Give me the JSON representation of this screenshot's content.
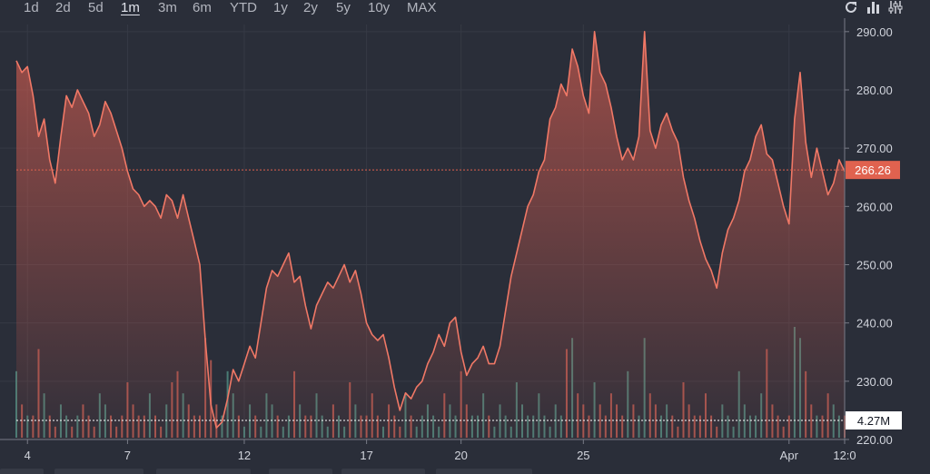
{
  "toolbar": {
    "ranges": [
      "1d",
      "2d",
      "5d",
      "1m",
      "3m",
      "6m",
      "YTD",
      "1y",
      "2y",
      "5y",
      "10y",
      "MAX"
    ],
    "active_range": "1m",
    "icons": [
      "refresh-icon",
      "bar-chart-icon",
      "settings-sliders-icon"
    ]
  },
  "colors": {
    "background": "#2a2e39",
    "grid": "#363a45",
    "price_line": "#f07866",
    "area_top": "#c0574d",
    "volume_up": "#4f8a80",
    "volume_down": "#b85a52",
    "price_label_bg": "#e0624f",
    "volume_label_bg": "#ffffff"
  },
  "chart_data": {
    "type": "area",
    "y_axis": {
      "range": [
        220,
        292
      ],
      "ticks": [
        "290.00",
        "280.00",
        "270.00",
        "260.00",
        "250.00",
        "240.00",
        "230.00",
        "220.00"
      ]
    },
    "x_axis": {
      "ticks": [
        "4",
        "7",
        "12",
        "17",
        "20",
        "25",
        "Apr",
        "12:0"
      ]
    },
    "last_price_label": "266.26",
    "last_price": 266.26,
    "volume_label": "4.27M",
    "volume_level": 4.27,
    "grid": true,
    "series": [
      {
        "values": [
          285,
          283,
          284,
          279,
          272,
          275,
          268,
          264,
          272,
          279,
          277,
          280,
          278,
          276,
          272,
          274,
          278,
          276,
          273,
          270,
          266,
          263,
          262,
          260,
          261,
          260,
          258,
          262,
          261,
          258,
          262,
          258,
          254,
          250,
          237,
          226,
          222,
          223,
          227,
          232,
          230,
          233,
          236,
          234,
          240,
          246,
          249,
          248,
          250,
          252,
          247,
          248,
          243,
          239,
          243,
          245,
          247,
          246,
          248,
          250,
          247,
          249,
          245,
          240,
          238,
          237,
          238,
          234,
          229,
          225,
          228,
          227,
          229,
          230,
          233,
          235,
          238,
          236,
          240,
          241,
          235,
          231,
          233,
          234,
          236,
          233,
          233,
          236,
          242,
          248,
          252,
          256,
          260,
          262,
          266,
          268,
          275,
          277,
          281,
          279,
          287,
          284,
          279,
          276,
          290,
          283,
          281,
          277,
          272,
          268,
          270,
          268,
          272,
          290,
          273,
          270,
          274,
          276,
          273,
          271,
          265,
          261,
          258,
          254,
          251,
          249,
          246,
          252,
          256,
          258,
          261,
          266,
          268,
          272,
          274,
          269,
          268,
          264,
          260,
          257,
          275,
          283,
          271,
          265,
          270,
          266,
          262,
          264,
          268,
          266
        ]
      }
    ],
    "volume_bars": [
      6,
      3,
      2,
      2,
      8,
      4,
      2,
      1,
      3,
      2,
      1,
      2,
      3,
      2,
      1,
      4,
      3,
      2,
      1,
      2,
      5,
      3,
      2,
      2,
      4,
      2,
      1,
      3,
      5,
      6,
      4,
      3,
      2,
      2,
      9,
      7,
      3,
      2,
      6,
      4,
      2,
      1,
      3,
      2,
      1,
      4,
      3,
      2,
      1,
      2,
      6,
      3,
      2,
      2,
      4,
      2,
      1,
      3,
      2,
      1,
      5,
      3,
      2,
      2,
      4,
      2,
      1,
      3,
      2,
      1,
      4,
      2,
      1,
      2,
      3,
      2,
      1,
      4,
      3,
      2,
      6,
      3,
      2,
      2,
      4,
      2,
      1,
      3,
      2,
      1,
      5,
      3,
      2,
      2,
      4,
      2,
      1,
      3,
      2,
      8,
      9,
      4,
      3,
      2,
      5,
      3,
      2,
      4,
      3,
      2,
      6,
      3,
      2,
      9,
      4,
      3,
      2,
      3,
      2,
      1,
      5,
      3,
      2,
      2,
      4,
      2,
      1,
      3,
      2,
      1,
      6,
      3,
      2,
      2,
      4,
      8,
      3,
      2,
      1,
      2,
      10,
      9,
      6,
      3,
      2,
      2,
      4,
      3,
      2,
      2
    ]
  }
}
